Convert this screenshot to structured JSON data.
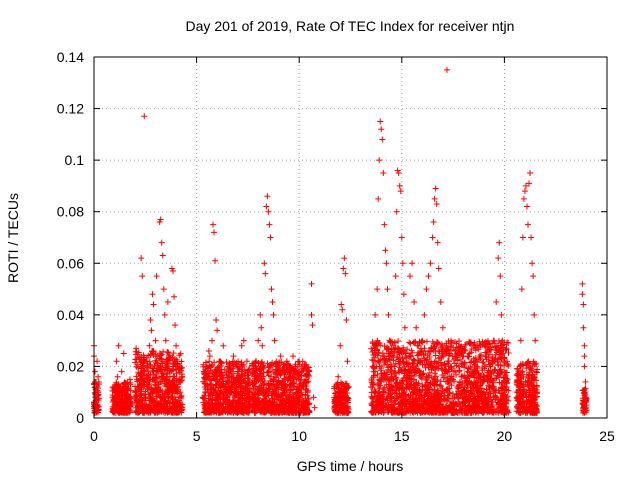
{
  "chart_data": {
    "type": "scatter",
    "title": "Day 201 of 2019, Rate Of TEC Index for receiver ntjn",
    "xlabel": "GPS time / hours",
    "ylabel": "ROTI / TECUs",
    "xlim": [
      0,
      25
    ],
    "ylim": [
      0,
      0.14
    ],
    "xticks": [
      0,
      5,
      10,
      15,
      20,
      25
    ],
    "yticks": [
      0,
      0.02,
      0.04,
      0.06,
      0.08,
      0.1,
      0.12,
      0.14
    ],
    "xtick_labels": [
      "0",
      "5",
      "10",
      "15",
      "20",
      "25"
    ],
    "ytick_labels": [
      "0",
      "0.02",
      "0.04",
      "0.06",
      "0.08",
      "0.1",
      "0.12",
      "0.14"
    ],
    "grid": true,
    "marker": "+",
    "color": "#ff0000",
    "series": [
      {
        "name": "ntjn",
        "points": [
          [
            0.0,
            0.028
          ],
          [
            0.0,
            0.024
          ],
          [
            0.05,
            0.018
          ],
          [
            0.05,
            0.012
          ],
          [
            0.1,
            0.009
          ],
          [
            0.1,
            0.006
          ],
          [
            0.15,
            0.004
          ],
          [
            0.15,
            0.022
          ],
          [
            0.2,
            0.016
          ],
          [
            0.2,
            0.01
          ],
          [
            0.05,
            0.003
          ],
          [
            0.1,
            0.014
          ],
          [
            0.9,
            0.008
          ],
          [
            1.0,
            0.012
          ],
          [
            1.05,
            0.005
          ],
          [
            1.1,
            0.022
          ],
          [
            1.15,
            0.016
          ],
          [
            1.2,
            0.028
          ],
          [
            1.25,
            0.01
          ],
          [
            1.3,
            0.006
          ],
          [
            1.35,
            0.018
          ],
          [
            1.4,
            0.004
          ],
          [
            1.45,
            0.025
          ],
          [
            1.5,
            0.013
          ],
          [
            1.6,
            0.009
          ],
          [
            1.7,
            0.007
          ],
          [
            1.75,
            0.015
          ],
          [
            2.0,
            0.01
          ],
          [
            2.05,
            0.027
          ],
          [
            2.1,
            0.006
          ],
          [
            2.2,
            0.012
          ],
          [
            2.3,
            0.062
          ],
          [
            2.35,
            0.055
          ],
          [
            2.45,
            0.117
          ],
          [
            2.5,
            0.008
          ],
          [
            2.6,
            0.02
          ],
          [
            2.7,
            0.028
          ],
          [
            2.75,
            0.038
          ],
          [
            2.8,
            0.034
          ],
          [
            2.85,
            0.048
          ],
          [
            2.9,
            0.044
          ],
          [
            3.0,
            0.03
          ],
          [
            3.05,
            0.055
          ],
          [
            3.1,
            0.018
          ],
          [
            3.15,
            0.012
          ],
          [
            3.2,
            0.076
          ],
          [
            3.25,
            0.077
          ],
          [
            3.3,
            0.068
          ],
          [
            3.35,
            0.063
          ],
          [
            3.4,
            0.05
          ],
          [
            3.45,
            0.04
          ],
          [
            3.5,
            0.03
          ],
          [
            3.55,
            0.022
          ],
          [
            3.6,
            0.045
          ],
          [
            3.65,
            0.01
          ],
          [
            3.7,
            0.016
          ],
          [
            3.8,
            0.058
          ],
          [
            3.85,
            0.057
          ],
          [
            3.9,
            0.047
          ],
          [
            3.95,
            0.036
          ],
          [
            4.0,
            0.028
          ],
          [
            4.05,
            0.02
          ],
          [
            4.1,
            0.014
          ],
          [
            4.15,
            0.008
          ],
          [
            4.2,
            0.005
          ],
          [
            3.0,
            0.006
          ],
          [
            3.4,
            0.008
          ],
          [
            2.4,
            0.015
          ],
          [
            5.3,
            0.008
          ],
          [
            5.4,
            0.012
          ],
          [
            5.5,
            0.02
          ],
          [
            5.55,
            0.016
          ],
          [
            5.6,
            0.026
          ],
          [
            5.65,
            0.024
          ],
          [
            5.7,
            0.02
          ],
          [
            5.75,
            0.03
          ],
          [
            5.8,
            0.075
          ],
          [
            5.85,
            0.072
          ],
          [
            5.9,
            0.061
          ],
          [
            5.95,
            0.038
          ],
          [
            6.0,
            0.034
          ],
          [
            6.1,
            0.022
          ],
          [
            6.2,
            0.016
          ],
          [
            6.3,
            0.028
          ],
          [
            6.4,
            0.012
          ],
          [
            6.5,
            0.008
          ],
          [
            6.6,
            0.018
          ],
          [
            6.7,
            0.014
          ],
          [
            6.8,
            0.024
          ],
          [
            6.9,
            0.01
          ],
          [
            7.0,
            0.006
          ],
          [
            7.1,
            0.016
          ],
          [
            7.2,
            0.028
          ],
          [
            7.3,
            0.03
          ],
          [
            7.4,
            0.012
          ],
          [
            7.5,
            0.008
          ],
          [
            5.6,
            0.005
          ],
          [
            6.0,
            0.004
          ],
          [
            7.7,
            0.01
          ],
          [
            7.8,
            0.016
          ],
          [
            7.9,
            0.022
          ],
          [
            8.0,
            0.03
          ],
          [
            8.1,
            0.04
          ],
          [
            8.15,
            0.035
          ],
          [
            8.2,
            0.028
          ],
          [
            8.3,
            0.06
          ],
          [
            8.35,
            0.056
          ],
          [
            8.4,
            0.082
          ],
          [
            8.45,
            0.086
          ],
          [
            8.5,
            0.08
          ],
          [
            8.55,
            0.075
          ],
          [
            8.6,
            0.07
          ],
          [
            8.65,
            0.05
          ],
          [
            8.7,
            0.045
          ],
          [
            8.75,
            0.04
          ],
          [
            8.8,
            0.03
          ],
          [
            8.9,
            0.02
          ],
          [
            9.0,
            0.014
          ],
          [
            9.1,
            0.024
          ],
          [
            9.2,
            0.018
          ],
          [
            9.3,
            0.012
          ],
          [
            9.4,
            0.022
          ],
          [
            9.5,
            0.008
          ],
          [
            9.6,
            0.016
          ],
          [
            9.7,
            0.024
          ],
          [
            9.8,
            0.02
          ],
          [
            9.9,
            0.012
          ],
          [
            10.0,
            0.016
          ],
          [
            10.1,
            0.01
          ],
          [
            10.2,
            0.006
          ],
          [
            10.3,
            0.014
          ],
          [
            10.4,
            0.01
          ],
          [
            10.6,
            0.052
          ],
          [
            10.6,
            0.04
          ],
          [
            10.65,
            0.036
          ],
          [
            10.7,
            0.008
          ],
          [
            10.75,
            0.004
          ],
          [
            7.9,
            0.005
          ],
          [
            9.0,
            0.004
          ],
          [
            11.7,
            0.008
          ],
          [
            11.8,
            0.012
          ],
          [
            11.9,
            0.016
          ],
          [
            12.0,
            0.028
          ],
          [
            12.05,
            0.044
          ],
          [
            12.1,
            0.042
          ],
          [
            12.15,
            0.058
          ],
          [
            12.2,
            0.062
          ],
          [
            12.25,
            0.056
          ],
          [
            12.3,
            0.038
          ],
          [
            12.35,
            0.022
          ],
          [
            12.4,
            0.012
          ],
          [
            12.0,
            0.006
          ],
          [
            12.2,
            0.004
          ],
          [
            13.5,
            0.012
          ],
          [
            13.6,
            0.02
          ],
          [
            13.7,
            0.04
          ],
          [
            13.8,
            0.05
          ],
          [
            13.85,
            0.085
          ],
          [
            13.9,
            0.1
          ],
          [
            13.95,
            0.115
          ],
          [
            14.0,
            0.112
          ],
          [
            14.05,
            0.108
          ],
          [
            14.1,
            0.095
          ],
          [
            14.15,
            0.075
          ],
          [
            14.2,
            0.065
          ],
          [
            14.25,
            0.06
          ],
          [
            14.3,
            0.05
          ],
          [
            14.35,
            0.04
          ],
          [
            14.4,
            0.03
          ],
          [
            14.5,
            0.02
          ],
          [
            14.6,
            0.015
          ],
          [
            14.7,
            0.055
          ],
          [
            14.75,
            0.08
          ],
          [
            14.8,
            0.096
          ],
          [
            14.85,
            0.095
          ],
          [
            14.9,
            0.09
          ],
          [
            14.95,
            0.088
          ],
          [
            15.0,
            0.07
          ],
          [
            15.05,
            0.06
          ],
          [
            15.1,
            0.048
          ],
          [
            15.15,
            0.035
          ],
          [
            15.2,
            0.025
          ],
          [
            15.3,
            0.015
          ],
          [
            15.4,
            0.055
          ],
          [
            15.5,
            0.06
          ],
          [
            15.6,
            0.045
          ],
          [
            15.7,
            0.035
          ],
          [
            15.8,
            0.028
          ],
          [
            15.9,
            0.022
          ],
          [
            16.0,
            0.03
          ],
          [
            16.1,
            0.04
          ],
          [
            16.2,
            0.05
          ],
          [
            16.3,
            0.055
          ],
          [
            16.4,
            0.06
          ],
          [
            16.5,
            0.07
          ],
          [
            16.55,
            0.076
          ],
          [
            16.6,
            0.085
          ],
          [
            16.65,
            0.089
          ],
          [
            16.7,
            0.083
          ],
          [
            16.75,
            0.068
          ],
          [
            16.8,
            0.058
          ],
          [
            16.9,
            0.045
          ],
          [
            17.0,
            0.035
          ],
          [
            17.2,
            0.135
          ],
          [
            17.1,
            0.028
          ],
          [
            17.3,
            0.022
          ],
          [
            17.4,
            0.03
          ],
          [
            17.5,
            0.018
          ],
          [
            17.6,
            0.026
          ],
          [
            17.7,
            0.012
          ],
          [
            17.8,
            0.02
          ],
          [
            17.9,
            0.016
          ],
          [
            18.0,
            0.024
          ],
          [
            18.1,
            0.01
          ],
          [
            18.2,
            0.018
          ],
          [
            18.3,
            0.014
          ],
          [
            18.4,
            0.022
          ],
          [
            18.5,
            0.012
          ],
          [
            18.6,
            0.018
          ],
          [
            18.7,
            0.028
          ],
          [
            18.8,
            0.024
          ],
          [
            18.9,
            0.014
          ],
          [
            19.0,
            0.01
          ],
          [
            19.1,
            0.02
          ],
          [
            19.2,
            0.026
          ],
          [
            19.3,
            0.018
          ],
          [
            19.4,
            0.012
          ],
          [
            19.5,
            0.03
          ],
          [
            19.6,
            0.045
          ],
          [
            19.7,
            0.062
          ],
          [
            19.75,
            0.068
          ],
          [
            19.8,
            0.055
          ],
          [
            19.85,
            0.04
          ],
          [
            19.9,
            0.03
          ],
          [
            20.0,
            0.022
          ],
          [
            20.1,
            0.012
          ],
          [
            14.0,
            0.004
          ],
          [
            15.0,
            0.006
          ],
          [
            16.0,
            0.008
          ],
          [
            17.0,
            0.005
          ],
          [
            18.0,
            0.006
          ],
          [
            19.0,
            0.004
          ],
          [
            20.0,
            0.006
          ],
          [
            20.6,
            0.008
          ],
          [
            20.7,
            0.012
          ],
          [
            20.75,
            0.02
          ],
          [
            20.8,
            0.03
          ],
          [
            20.85,
            0.05
          ],
          [
            20.9,
            0.07
          ],
          [
            20.95,
            0.085
          ],
          [
            21.0,
            0.088
          ],
          [
            21.05,
            0.09
          ],
          [
            21.1,
            0.082
          ],
          [
            21.15,
            0.075
          ],
          [
            21.2,
            0.091
          ],
          [
            21.25,
            0.095
          ],
          [
            21.3,
            0.07
          ],
          [
            21.35,
            0.06
          ],
          [
            21.4,
            0.055
          ],
          [
            21.45,
            0.04
          ],
          [
            21.5,
            0.03
          ],
          [
            21.55,
            0.018
          ],
          [
            21.6,
            0.01
          ],
          [
            20.9,
            0.004
          ],
          [
            21.2,
            0.006
          ],
          [
            23.8,
            0.052
          ],
          [
            23.8,
            0.048
          ],
          [
            23.85,
            0.044
          ],
          [
            23.85,
            0.035
          ],
          [
            23.9,
            0.028
          ],
          [
            23.9,
            0.02
          ],
          [
            23.95,
            0.014
          ],
          [
            23.95,
            0.008
          ],
          [
            24.0,
            0.005
          ],
          [
            24.0,
            0.003
          ],
          [
            23.9,
            0.024
          ]
        ]
      }
    ],
    "clusters": [
      {
        "x": [
          0.0,
          0.25
        ],
        "ymax": 0.014
      },
      {
        "x": [
          0.9,
          1.8
        ],
        "ymax": 0.014
      },
      {
        "x": [
          2.0,
          4.3
        ],
        "ymax": 0.026
      },
      {
        "x": [
          5.3,
          7.6
        ],
        "ymax": 0.022
      },
      {
        "x": [
          7.7,
          10.5
        ],
        "ymax": 0.022
      },
      {
        "x": [
          11.7,
          12.4
        ],
        "ymax": 0.014
      },
      {
        "x": [
          13.5,
          20.2
        ],
        "ymax": 0.03
      },
      {
        "x": [
          20.6,
          21.6
        ],
        "ymax": 0.022
      },
      {
        "x": [
          23.8,
          24.0
        ],
        "ymax": 0.012
      }
    ]
  }
}
